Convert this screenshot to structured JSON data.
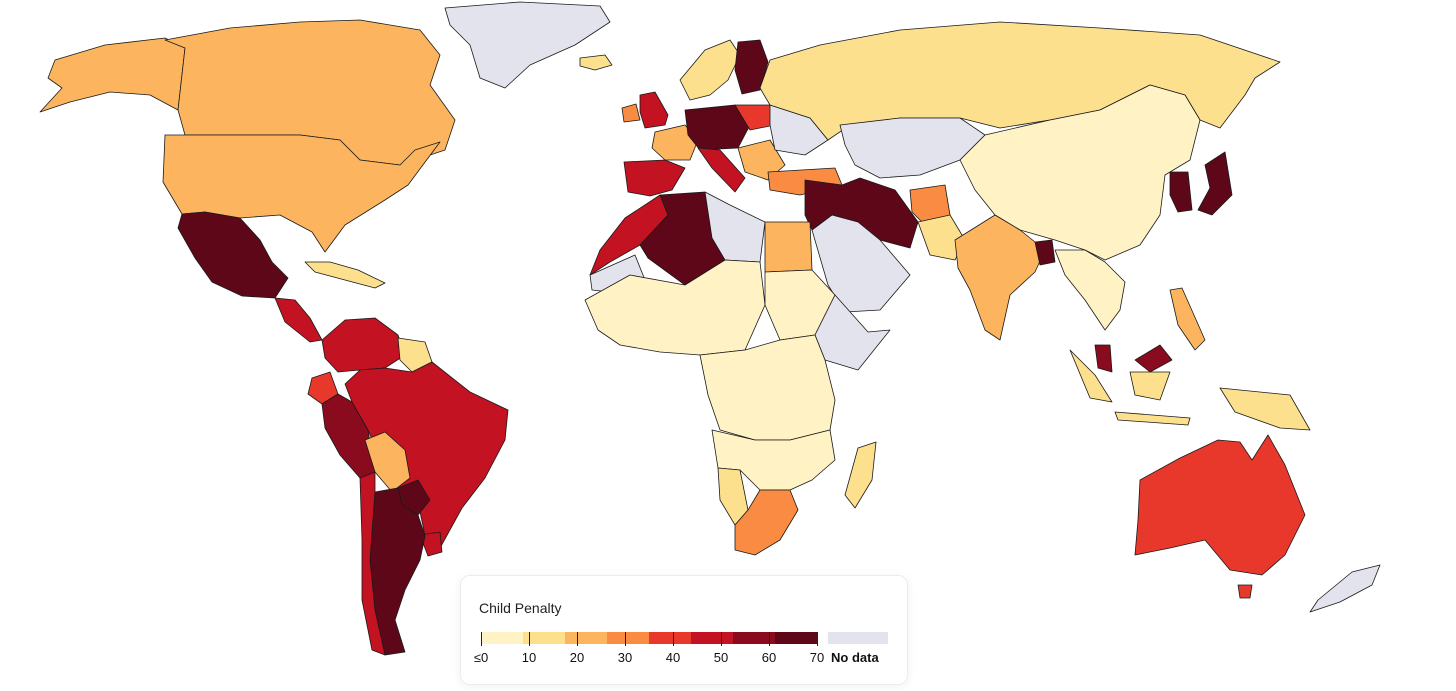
{
  "map": {
    "colors": {
      "background": "#ffffff",
      "ocean": "#ffffff",
      "no_data": "#e2e3ec",
      "border": "#1a1a1a"
    },
    "regions": [
      {
        "name": "alaska",
        "bin": 2
      },
      {
        "name": "canada",
        "bin": 2
      },
      {
        "name": "greenland",
        "bin": "nodata"
      },
      {
        "name": "united-states",
        "bin": 2
      },
      {
        "name": "mexico",
        "bin": 7
      },
      {
        "name": "central-america",
        "bin": 5
      },
      {
        "name": "caribbean",
        "bin": 1
      },
      {
        "name": "colombia-venezuela",
        "bin": 5
      },
      {
        "name": "guianas",
        "bin": 1
      },
      {
        "name": "ecuador",
        "bin": 4
      },
      {
        "name": "peru",
        "bin": 6
      },
      {
        "name": "brazil",
        "bin": 5
      },
      {
        "name": "bolivia",
        "bin": 2
      },
      {
        "name": "paraguay",
        "bin": 7
      },
      {
        "name": "uruguay",
        "bin": 5
      },
      {
        "name": "argentina",
        "bin": 7
      },
      {
        "name": "chile",
        "bin": 5
      },
      {
        "name": "iceland",
        "bin": 1
      },
      {
        "name": "scandinavia",
        "bin": 1
      },
      {
        "name": "sweden-finland",
        "bin": 7
      },
      {
        "name": "united-kingdom",
        "bin": 5
      },
      {
        "name": "ireland",
        "bin": 3
      },
      {
        "name": "iberia",
        "bin": 5
      },
      {
        "name": "france",
        "bin": 2
      },
      {
        "name": "germany-central",
        "bin": 7
      },
      {
        "name": "poland",
        "bin": 4
      },
      {
        "name": "italy",
        "bin": 5
      },
      {
        "name": "balkans",
        "bin": 2
      },
      {
        "name": "eastern-europe",
        "bin": "nodata"
      },
      {
        "name": "turkey",
        "bin": 3
      },
      {
        "name": "russia",
        "bin": 1
      },
      {
        "name": "kazakhstan",
        "bin": "nodata"
      },
      {
        "name": "mongolia-china",
        "bin": 0
      },
      {
        "name": "korea",
        "bin": 7
      },
      {
        "name": "japan",
        "bin": 7
      },
      {
        "name": "middle-east",
        "bin": 7
      },
      {
        "name": "arabia",
        "bin": "nodata"
      },
      {
        "name": "afghanistan",
        "bin": 3
      },
      {
        "name": "pakistan",
        "bin": 1
      },
      {
        "name": "india",
        "bin": 2
      },
      {
        "name": "bangladesh",
        "bin": 7
      },
      {
        "name": "southeast-asia",
        "bin": 0
      },
      {
        "name": "malaysia",
        "bin": 6
      },
      {
        "name": "indonesia",
        "bin": 1
      },
      {
        "name": "philippines",
        "bin": 2
      },
      {
        "name": "morocco",
        "bin": 5
      },
      {
        "name": "algeria",
        "bin": 7
      },
      {
        "name": "sahara-west",
        "bin": "nodata"
      },
      {
        "name": "libya",
        "bin": "nodata"
      },
      {
        "name": "egypt",
        "bin": 2
      },
      {
        "name": "west-africa",
        "bin": 0
      },
      {
        "name": "sudan",
        "bin": 0
      },
      {
        "name": "horn-of-africa",
        "bin": "nodata"
      },
      {
        "name": "central-africa",
        "bin": 0
      },
      {
        "name": "southern-africa",
        "bin": 0
      },
      {
        "name": "namibia",
        "bin": 1
      },
      {
        "name": "south-africa",
        "bin": 3
      },
      {
        "name": "madagascar",
        "bin": 1
      },
      {
        "name": "australia",
        "bin": 4
      },
      {
        "name": "tasmania",
        "bin": 4
      },
      {
        "name": "new-zealand",
        "bin": "nodata"
      }
    ]
  },
  "legend": {
    "title": "Child Penalty",
    "bins": [
      "#fff2c4",
      "#fde08e",
      "#fcb55e",
      "#f98b42",
      "#e8382c",
      "#c31222",
      "#8a0a1e",
      "#5e0719"
    ],
    "ticks": [
      {
        "value": 0,
        "label": "≤0"
      },
      {
        "value": 10,
        "label": "10"
      },
      {
        "value": 20,
        "label": "20"
      },
      {
        "value": 30,
        "label": "30"
      },
      {
        "value": 40,
        "label": "40"
      },
      {
        "value": 50,
        "label": "50"
      },
      {
        "value": 60,
        "label": "60"
      },
      {
        "value": 70,
        "label": "70"
      }
    ],
    "range": [
      0,
      70
    ],
    "no_data_label": "No data"
  }
}
